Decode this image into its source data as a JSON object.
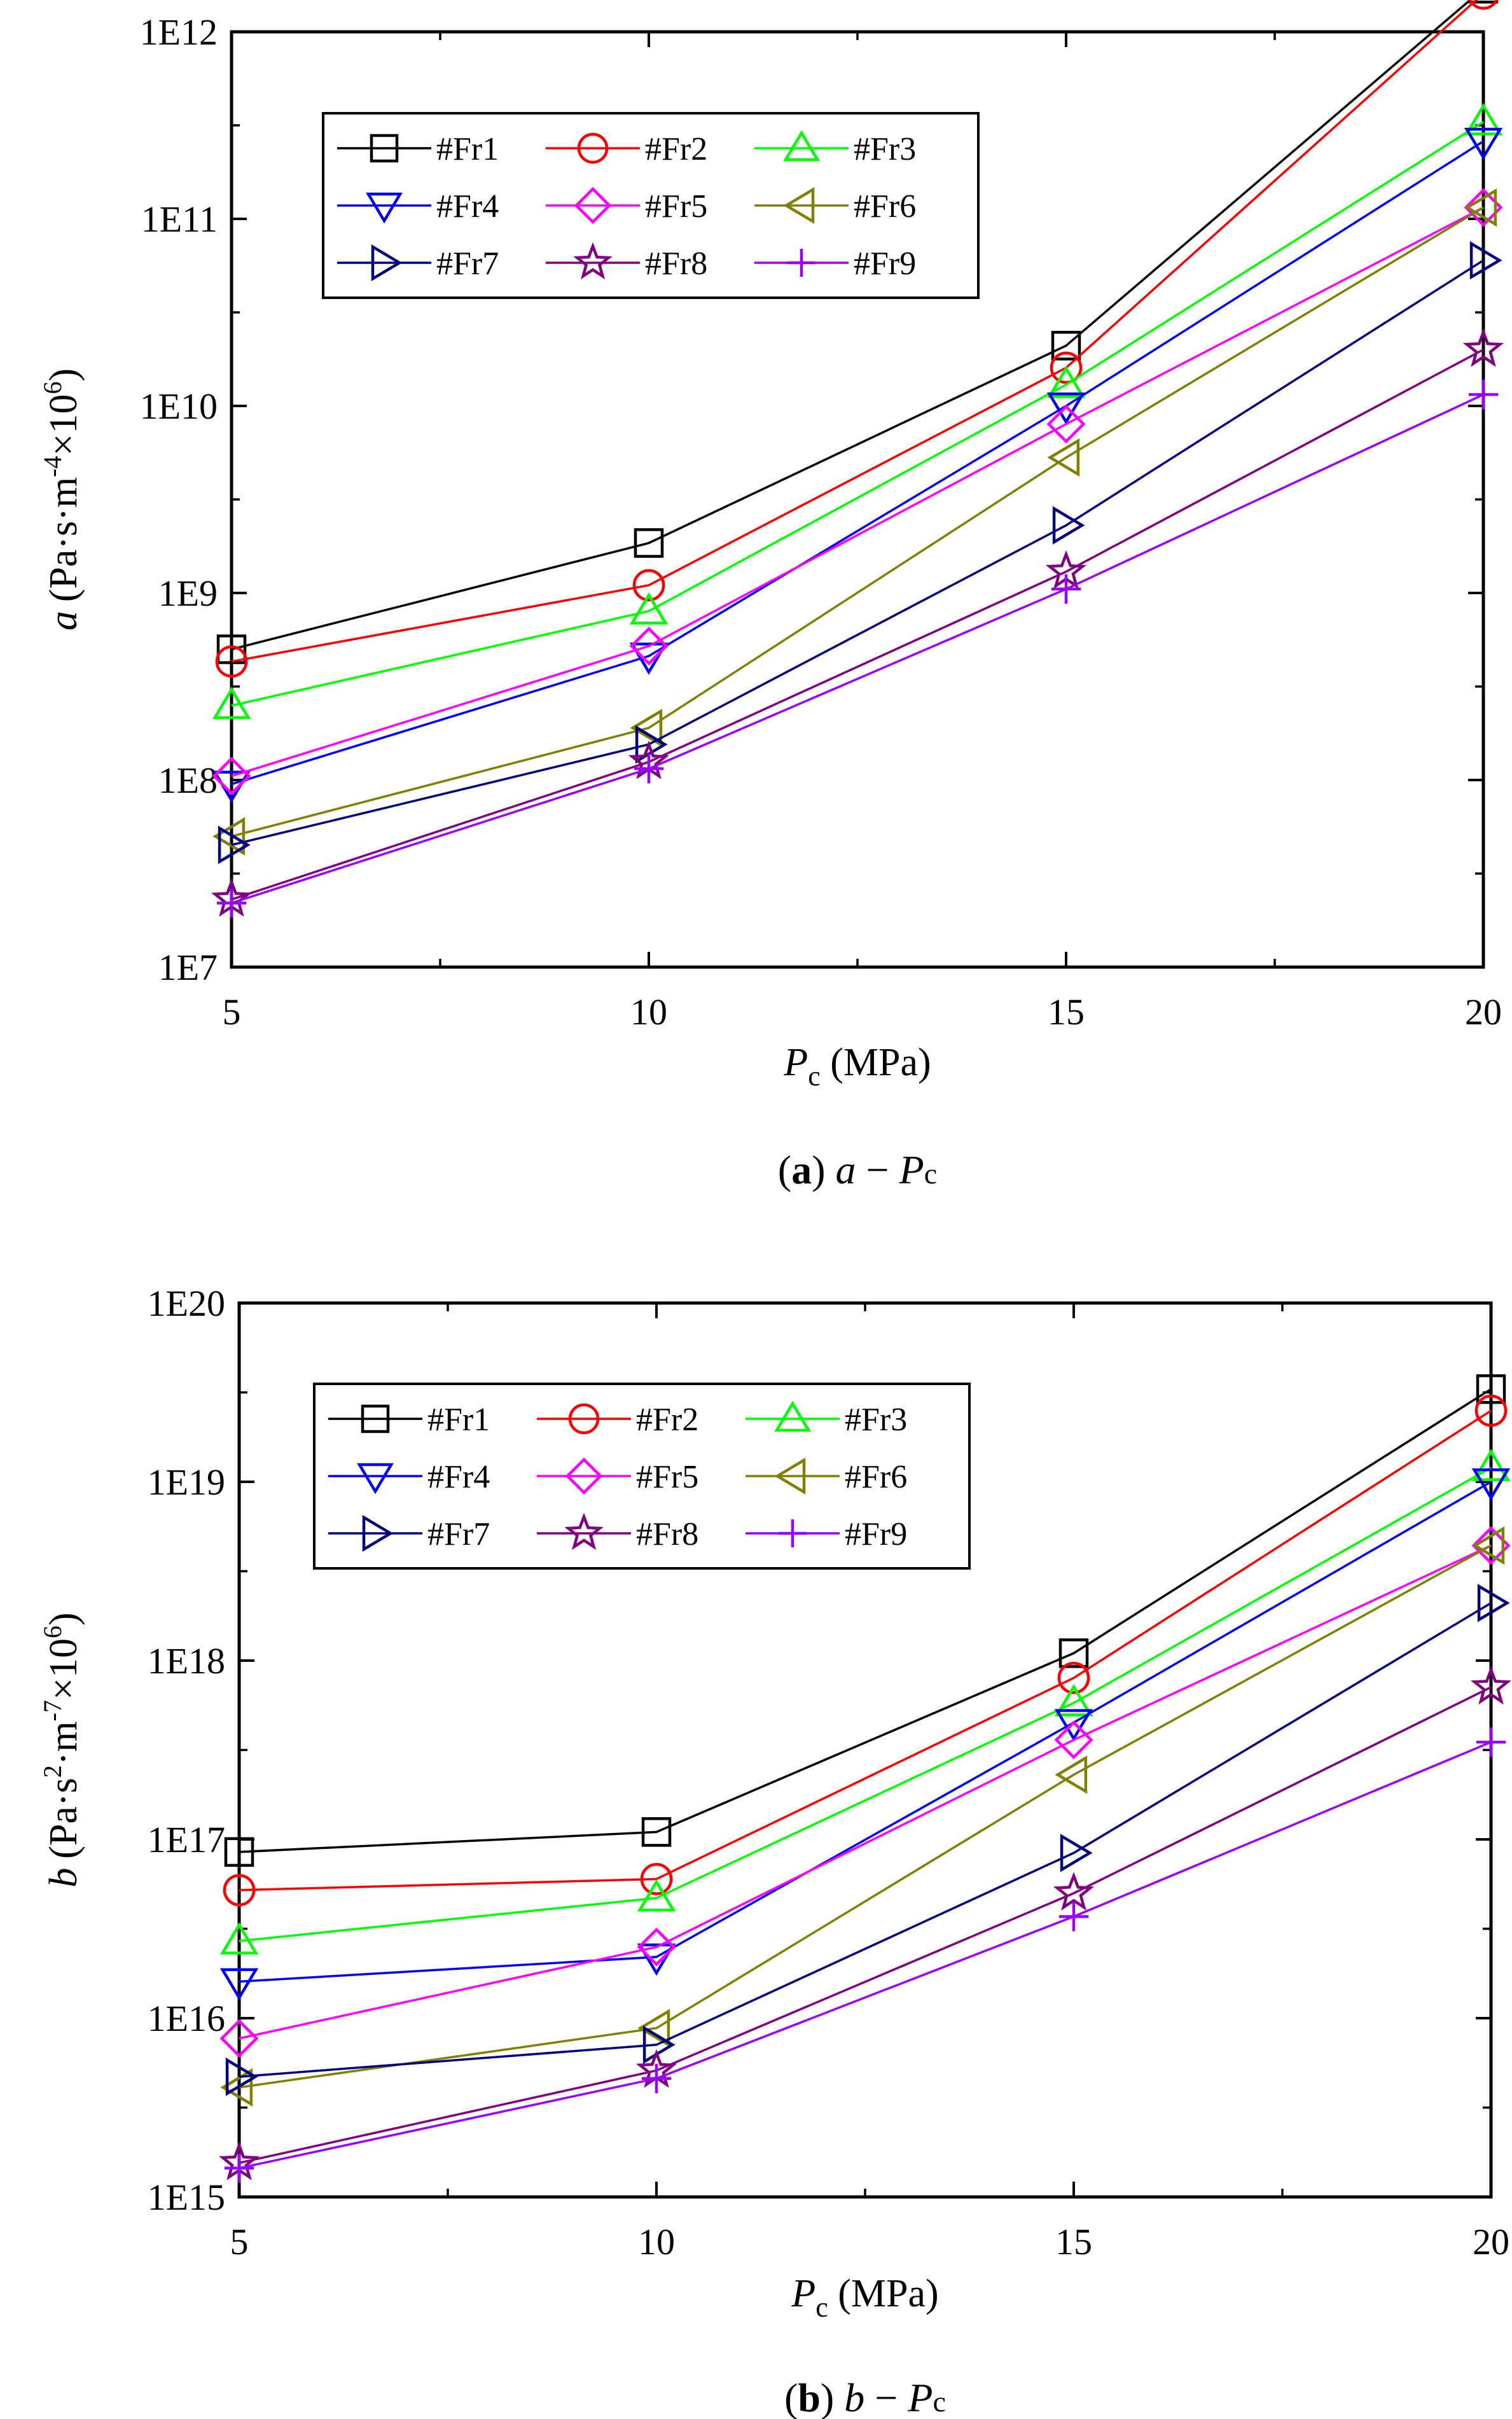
{
  "chart_data": [
    {
      "type": "line",
      "yscale": "log",
      "x": [
        5,
        10,
        15,
        20
      ],
      "xlim": [
        5,
        20
      ],
      "ylim": [
        10000000.0,
        1000000000000.0
      ],
      "x_ticks": [
        5,
        10,
        15,
        20
      ],
      "y_ticks": [
        10000000.0,
        100000000.0,
        1000000000.0,
        10000000000.0,
        100000000000.0,
        1000000000000.0
      ],
      "x_tick_labels": [
        "5",
        "10",
        "15",
        "20"
      ],
      "y_tick_labels": [
        "1E7",
        "1E8",
        "1E9",
        "1E10",
        "1E11",
        "1E12"
      ],
      "ylabel_var": "a",
      "ylabel_unit": "(Pa·s·m",
      "ylabel_exp": "-4",
      "ylabel_tail": "×10",
      "ylabel_exp2": "6",
      "ylabel_close": ")",
      "xlabel_var": "P",
      "xlabel_sub": "c",
      "xlabel_unit": " (MPa)",
      "caption_letter": "a",
      "caption_expr_var": "a",
      "caption_expr_op": " − ",
      "caption_expr_P": "P",
      "caption_expr_sub": "c",
      "legend_position": "top-left",
      "series": [
        {
          "name": "#Fr1",
          "marker": "square",
          "color": "#000000",
          "values": [
            500000000.0,
            1850000000.0,
            21000000000.0,
            1700000000000.0
          ]
        },
        {
          "name": "#Fr2",
          "marker": "circle",
          "color": "#ff0000",
          "values": [
            430000000.0,
            1100000000.0,
            16000000000.0,
            1600000000000.0
          ]
        },
        {
          "name": "#Fr3",
          "marker": "triangle-up",
          "color": "#00ff00",
          "values": [
            250000000.0,
            800000000.0,
            13000000000.0,
            330000000000.0
          ]
        },
        {
          "name": "#Fr4",
          "marker": "triangle-down",
          "color": "#0000ff",
          "values": [
            95000000.0,
            460000000.0,
            10000000000.0,
            260000000000.0
          ]
        },
        {
          "name": "#Fr5",
          "marker": "diamond",
          "color": "#ff00ff",
          "values": [
            105000000.0,
            520000000.0,
            8000000000.0,
            115000000000.0
          ]
        },
        {
          "name": "#Fr6",
          "marker": "triangle-left",
          "color": "#808000",
          "values": [
            50000000.0,
            190000000.0,
            5300000000.0,
            115000000000.0
          ]
        },
        {
          "name": "#Fr7",
          "marker": "triangle-right",
          "color": "#000080",
          "values": [
            45000000.0,
            155000000.0,
            2300000000.0,
            60000000000.0
          ]
        },
        {
          "name": "#Fr8",
          "marker": "star",
          "color": "#800080",
          "values": [
            23000000.0,
            125000000.0,
            1300000000.0,
            20000000000.0
          ]
        },
        {
          "name": "#Fr9",
          "marker": "plus",
          "color": "#9900ff",
          "values": [
            22000000.0,
            115000000.0,
            1050000000.0,
            11500000000.0
          ]
        }
      ]
    },
    {
      "type": "line",
      "yscale": "log",
      "x": [
        5,
        10,
        15,
        20
      ],
      "xlim": [
        5,
        20
      ],
      "ylim": [
        1000000000000000.0,
        1e+20
      ],
      "x_ticks": [
        5,
        10,
        15,
        20
      ],
      "y_ticks": [
        1000000000000000.0,
        1e+16,
        1e+17,
        1e+18,
        1e+19,
        1e+20
      ],
      "x_tick_labels": [
        "5",
        "10",
        "15",
        "20"
      ],
      "y_tick_labels": [
        "1E15",
        "1E16",
        "1E17",
        "1E18",
        "1E19",
        "1E20"
      ],
      "ylabel_var": "b",
      "ylabel_unit": "(Pa·s",
      "ylabel_exp": "2",
      "ylabel_mid": "·m",
      "ylabel_exp_mid": "-7",
      "ylabel_tail": "×10",
      "ylabel_exp2": "6",
      "ylabel_close": ")",
      "xlabel_var": "P",
      "xlabel_sub": "c",
      "xlabel_unit": " (MPa)",
      "caption_letter": "b",
      "caption_expr_var": "b",
      "caption_expr_op": " − ",
      "caption_expr_P": "P",
      "caption_expr_sub": "c",
      "legend_position": "top-left",
      "series": [
        {
          "name": "#Fr1",
          "marker": "square",
          "color": "#000000",
          "values": [
            8.5e+16,
            1.1e+17,
            1.1e+18,
            3.3e+19
          ]
        },
        {
          "name": "#Fr2",
          "marker": "circle",
          "color": "#ff0000",
          "values": [
            5.2e+16,
            6e+16,
            8e+17,
            2.5e+19
          ]
        },
        {
          "name": "#Fr3",
          "marker": "triangle-up",
          "color": "#00ff00",
          "values": [
            2.7e+16,
            4.7e+16,
            5.8e+17,
            1.2e+19
          ]
        },
        {
          "name": "#Fr4",
          "marker": "triangle-down",
          "color": "#0000ff",
          "values": [
            1.6e+16,
            2.2e+16,
            4.5e+17,
            1e+19
          ]
        },
        {
          "name": "#Fr5",
          "marker": "diamond",
          "color": "#ff00ff",
          "values": [
            7700000000000000.0,
            2.5e+16,
            3.6e+17,
            4.4e+18
          ]
        },
        {
          "name": "#Fr6",
          "marker": "triangle-left",
          "color": "#808000",
          "values": [
            4100000000000000.0,
            8800000000000000.0,
            2.3e+17,
            4.4e+18
          ]
        },
        {
          "name": "#Fr7",
          "marker": "triangle-right",
          "color": "#000080",
          "values": [
            4700000000000000.0,
            7100000000000000.0,
            8.4e+16,
            2.1e+18
          ]
        },
        {
          "name": "#Fr8",
          "marker": "star",
          "color": "#800080",
          "values": [
            1550000000000000.0,
            5100000000000000.0,
            5e+16,
            7.1e+17
          ]
        },
        {
          "name": "#Fr9",
          "marker": "plus",
          "color": "#9900ff",
          "values": [
            1450000000000000.0,
            4600000000000000.0,
            3.7e+16,
            3.5e+17
          ]
        }
      ]
    }
  ]
}
